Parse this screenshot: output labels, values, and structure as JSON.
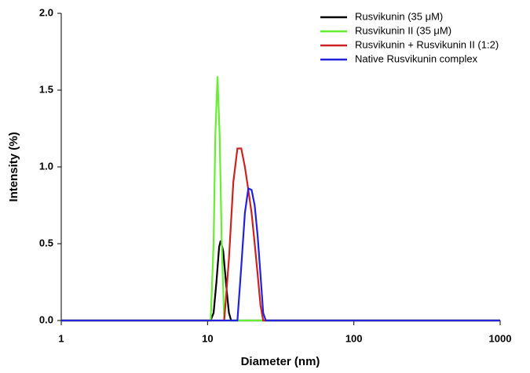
{
  "chart_data": {
    "type": "line",
    "xlabel": "Diameter (nm)",
    "ylabel": "Intensity (%)",
    "xscale": "log",
    "xlim": [
      1,
      1000
    ],
    "xticks": [
      1,
      10,
      100,
      1000
    ],
    "ylim": [
      0,
      2
    ],
    "yticks": [
      {
        "value": 0,
        "label": "0.0"
      },
      0.5,
      {
        "value": 1,
        "label": "1.0"
      },
      1.5,
      {
        "value": 2,
        "label": "2.0"
      }
    ],
    "legend": "upper right",
    "series": [
      {
        "name": "Rusvikunin (35 μM)",
        "color": "#000000",
        "x": [
          1,
          10.5,
          11,
          11.5,
          12,
          12.3,
          12.8,
          13.5,
          14,
          14.5,
          1000
        ],
        "values": [
          0,
          0,
          0.05,
          0.25,
          0.48,
          0.52,
          0.45,
          0.2,
          0.05,
          0,
          0
        ]
      },
      {
        "name": "Rusvikunin II (35 μM)",
        "color": "#66ee33",
        "x": [
          1,
          10.5,
          11,
          11.3,
          11.7,
          12.1,
          12.5,
          13,
          1000
        ],
        "values": [
          0,
          0,
          0.5,
          1.2,
          1.59,
          1.2,
          0.5,
          0,
          0
        ]
      },
      {
        "name": "Rusvikunin + Rusvikunin II (1:2)",
        "color": "#cc2222",
        "x": [
          1,
          13,
          14,
          15,
          16,
          17,
          18,
          19,
          20,
          21,
          22,
          23,
          24,
          1000
        ],
        "values": [
          0,
          0,
          0.4,
          0.9,
          1.12,
          1.12,
          1.0,
          0.85,
          0.7,
          0.5,
          0.3,
          0.1,
          0,
          0
        ]
      },
      {
        "name": "Native Rusvikunin complex",
        "color": "#2222dd",
        "x": [
          1,
          16,
          17,
          18,
          19,
          20,
          21,
          22,
          23,
          24,
          25,
          1000
        ],
        "values": [
          0,
          0,
          0.35,
          0.7,
          0.86,
          0.85,
          0.75,
          0.55,
          0.3,
          0.05,
          0,
          0
        ]
      }
    ]
  }
}
